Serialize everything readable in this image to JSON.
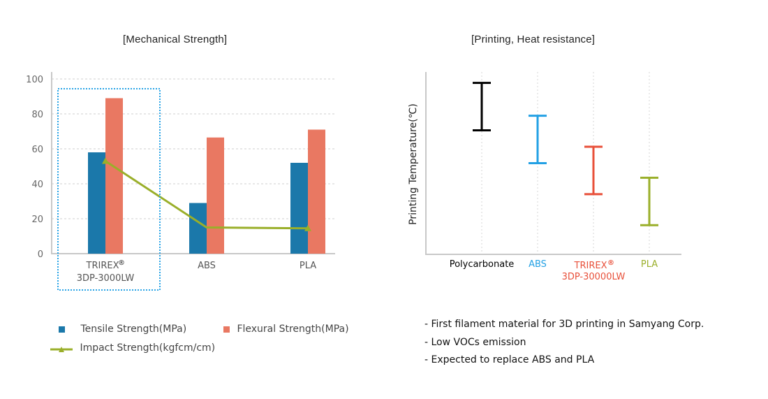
{
  "chart_data": [
    {
      "type": "bar",
      "title": "[Mechanical Strength]",
      "xlabel": "",
      "ylabel": "",
      "ylim": [
        0,
        100
      ],
      "yticks": [
        0,
        20,
        40,
        60,
        80,
        100
      ],
      "grid": true,
      "categories": [
        "TRIREX® 3DP-3000LW",
        "ABS",
        "PLA"
      ],
      "category_lines": [
        [
          "TRIREX",
          "®",
          "3DP-3000LW"
        ],
        [
          "ABS"
        ],
        [
          "PLA"
        ]
      ],
      "highlighted_category": "TRIREX® 3DP-3000LW",
      "series": [
        {
          "name": "Tensile Strength(MPa)",
          "kind": "bar",
          "color": "#1b78aa",
          "values": [
            58,
            29,
            52
          ]
        },
        {
          "name": "Flexural Strength(MPa)",
          "kind": "bar",
          "color": "#e97862",
          "values": [
            89,
            66.5,
            71
          ]
        },
        {
          "name": "Impact Strength(kgfcm/cm)",
          "kind": "line",
          "marker": "triangle",
          "color": "#9aaf2a",
          "values": [
            53,
            15,
            14.5
          ]
        }
      ],
      "legend_position": "bottom"
    },
    {
      "type": "range",
      "title": "[Printing, Heat resistance]",
      "ylabel": "Printing Temperature(℃)",
      "xlabel": "",
      "relative_scale": true,
      "ylim": [
        0,
        1
      ],
      "categories": [
        "Polycarbonate",
        "ABS",
        "TRIREX® 3DP-30000LW",
        "PLA"
      ],
      "category_lines": [
        [
          "Polycarbonate"
        ],
        [
          "ABS"
        ],
        [
          "TRIREX",
          "®",
          "3DP-30000LW"
        ],
        [
          "PLA"
        ]
      ],
      "colors": [
        "#000000",
        "#22a0e4",
        "#e8503a",
        "#9aaf2a"
      ],
      "ranges": [
        {
          "low": 0.68,
          "high": 0.94
        },
        {
          "low": 0.5,
          "high": 0.76
        },
        {
          "low": 0.33,
          "high": 0.59
        },
        {
          "low": 0.16,
          "high": 0.42
        }
      ]
    }
  ],
  "notes": [
    "- First filament material for 3D printing in Samyang Corp.",
    "- Low VOCs emission",
    "- Expected to replace ABS and PLA"
  ]
}
